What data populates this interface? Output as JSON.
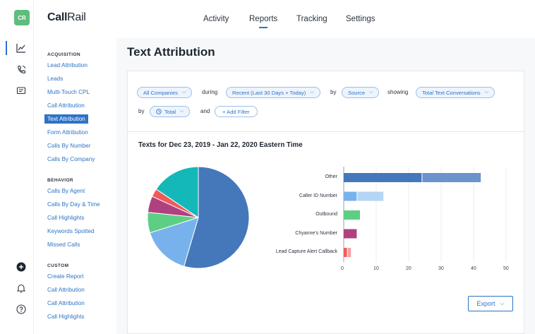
{
  "app": {
    "logo_text": "CR",
    "brand_bold": "Call",
    "brand_light": "Rail"
  },
  "rail_icons": [
    "chart-line-icon",
    "phone-icon",
    "message-icon",
    "plus-circle-icon",
    "bell-icon",
    "help-icon"
  ],
  "topnav": [
    {
      "label": "Activity",
      "active": false
    },
    {
      "label": "Reports",
      "active": true
    },
    {
      "label": "Tracking",
      "active": false
    },
    {
      "label": "Settings",
      "active": false
    }
  ],
  "sidebar": {
    "acquisition_heading": "ACQUISITION",
    "acquisition": [
      "Lead Attribution",
      "Leads",
      "Multi-Touch CPL",
      "Call Attribution",
      "Text Attribution",
      "Form Attribution",
      "Calls By Number",
      "Calls By Company"
    ],
    "behavior_heading": "BEHAVIOR",
    "behavior": [
      "Calls By Agent",
      "Calls By Day & Time",
      "Call Highlights",
      "Keywords Spotted",
      "Missed Calls"
    ],
    "custom_heading": "CUSTOM",
    "custom": [
      "Create Report",
      "Call Attribution",
      "Call Attribution",
      "Call Highlights"
    ],
    "active_item": "Text Attribution"
  },
  "page": {
    "title": "Text Attribution"
  },
  "filters": {
    "company": "All Companies",
    "during": "during",
    "range": "Recent (Last 30 Days + Today)",
    "by1": "by",
    "source": "Source",
    "showing": "showing",
    "metric": "Total Text Conversations",
    "by2": "by",
    "total": "Total",
    "and": "and",
    "add_filter": "+ Add Filter"
  },
  "chart_title": "Texts for Dec 23, 2019 - Jan 22, 2020 Eastern Time",
  "export_label": "Export",
  "colors": {
    "accent": "#2d73c7",
    "other": "#4577bb",
    "caller_id": "#78b2ec",
    "outbound": "#5ccf85",
    "chyanne": "#b04180",
    "lead_capture": "#ef5b5b",
    "teal": "#14b8b8"
  },
  "chart_data": [
    {
      "type": "pie",
      "slices": [
        {
          "label": "Other",
          "value": 42,
          "color": "#4577bb"
        },
        {
          "label": "Caller ID Number",
          "value": 12,
          "color": "#78b2ec"
        },
        {
          "label": "Outbound",
          "value": 5,
          "color": "#5ccf85"
        },
        {
          "label": "Chyanne's Number",
          "value": 4,
          "color": "#b04180"
        },
        {
          "label": "Lead Capture Alert Callback",
          "value": 2,
          "color": "#ef5b5b"
        },
        {
          "label": "",
          "value": 12,
          "color": "#14b8b8"
        }
      ]
    },
    {
      "type": "bar",
      "orientation": "horizontal",
      "categories": [
        "Other",
        "Caller ID Number",
        "Outbound",
        "Chyanne's Number",
        "Lead Capture Alert Callback"
      ],
      "series": [
        {
          "values": [
            24,
            4,
            5,
            4,
            1
          ]
        },
        {
          "values": [
            18,
            8,
            0,
            0,
            1
          ]
        }
      ],
      "xlim": [
        0,
        50
      ],
      "xticks": [
        "0",
        "10",
        "20",
        "30",
        "40",
        "50"
      ],
      "grid": true
    }
  ]
}
